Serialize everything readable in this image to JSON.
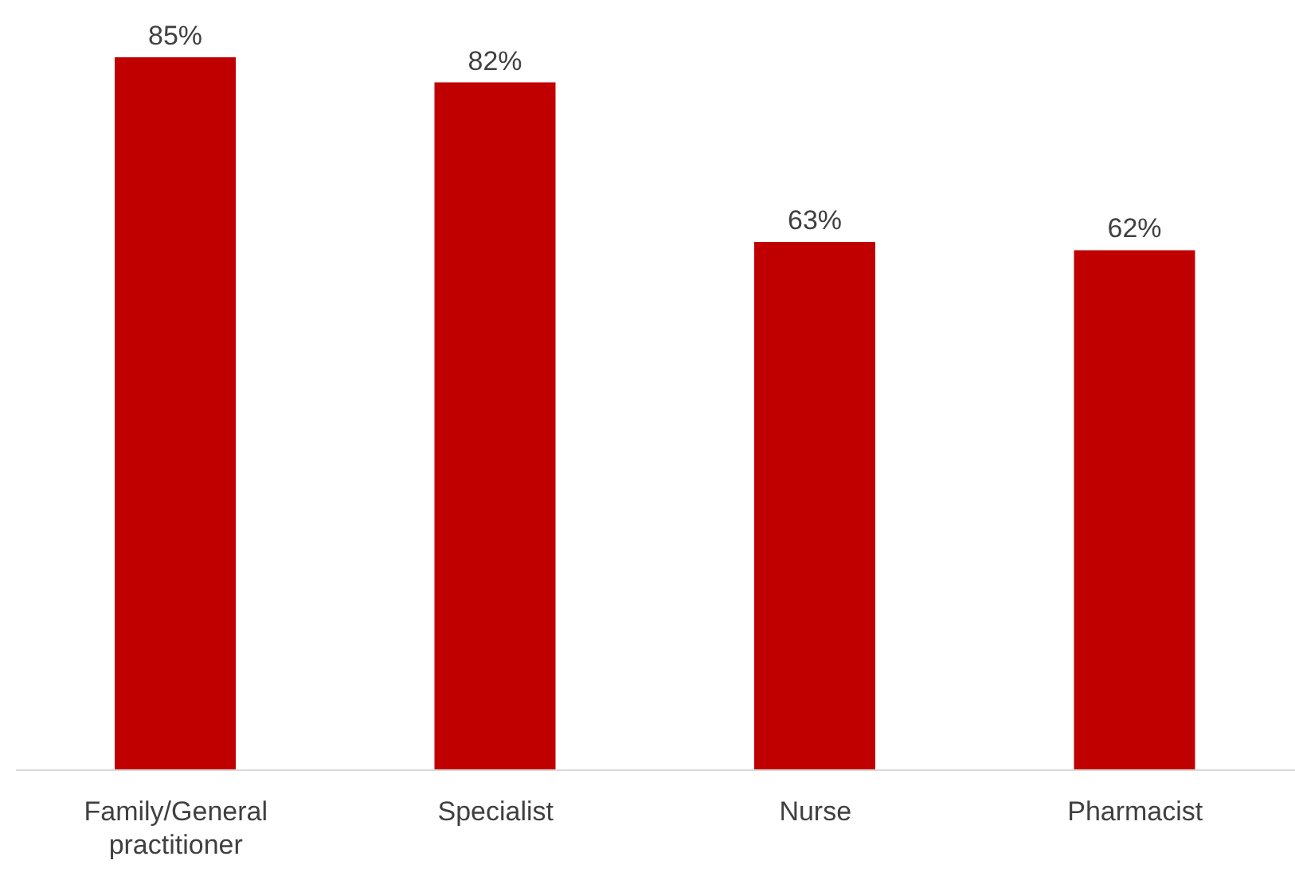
{
  "chart_data": {
    "type": "bar",
    "categories": [
      "Family/General practitioner",
      "Specialist",
      "Nurse",
      "Pharmacist"
    ],
    "values": [
      85,
      82,
      63,
      62
    ],
    "value_labels": [
      "85%",
      "82%",
      "63%",
      "62%"
    ],
    "color": "#c00000",
    "tick_labels": "x"
  }
}
